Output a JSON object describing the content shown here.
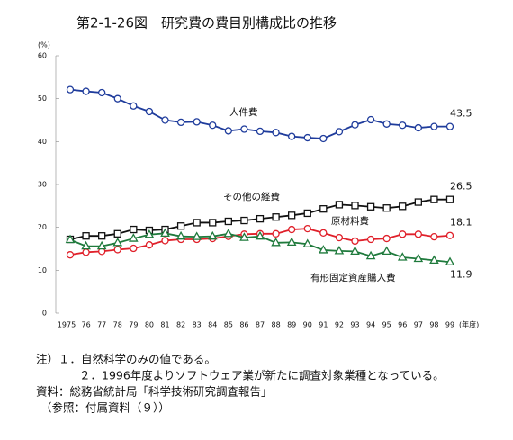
{
  "title": "第2-1-26図　研究費の費目別構成比の推移",
  "chart_data": {
    "type": "line",
    "y_label": "(%)",
    "x_label": "(年度)",
    "categories": [
      "1975",
      "76",
      "77",
      "78",
      "79",
      "80",
      "81",
      "82",
      "83",
      "84",
      "85",
      "86",
      "87",
      "88",
      "89",
      "90",
      "91",
      "92",
      "93",
      "94",
      "95",
      "96",
      "97",
      "98",
      "99"
    ],
    "ylim": [
      0,
      60
    ],
    "yticks": [
      0,
      10,
      20,
      30,
      40,
      50,
      60
    ],
    "series": [
      {
        "name": "人件費",
        "color": "#1f3c9c",
        "marker": "circle",
        "values": [
          52.1,
          51.7,
          51.4,
          50.0,
          48.3,
          47.0,
          45.0,
          44.5,
          44.6,
          43.8,
          42.5,
          42.9,
          42.4,
          42.1,
          41.2,
          40.9,
          40.7,
          42.3,
          43.9,
          45.1,
          44.1,
          43.8,
          43.2,
          43.5,
          43.5
        ]
      },
      {
        "name": "その他の経費",
        "color": "#111111",
        "marker": "square",
        "values": [
          17.2,
          18.0,
          18.0,
          18.5,
          19.5,
          19.3,
          19.5,
          20.3,
          21.1,
          21.1,
          21.4,
          21.6,
          22.0,
          22.4,
          22.8,
          23.3,
          24.3,
          25.3,
          25.1,
          24.8,
          24.5,
          24.9,
          25.9,
          26.5,
          26.5
        ]
      },
      {
        "name": "原材料費",
        "color": "#e0202a",
        "marker": "circle",
        "values": [
          13.6,
          14.2,
          14.4,
          14.8,
          15.1,
          15.9,
          16.9,
          17.2,
          17.2,
          17.4,
          17.9,
          18.4,
          18.5,
          18.5,
          19.5,
          19.7,
          18.7,
          17.6,
          16.8,
          17.2,
          17.4,
          18.4,
          18.4,
          17.8,
          18.1
        ]
      },
      {
        "name": "有形固定資産購入費",
        "color": "#1f7a3c",
        "marker": "triangle",
        "values": [
          17.1,
          15.6,
          15.6,
          16.4,
          17.4,
          18.3,
          18.6,
          17.9,
          17.8,
          17.9,
          18.5,
          17.6,
          17.9,
          16.4,
          16.5,
          16.1,
          14.7,
          14.5,
          14.4,
          13.3,
          14.4,
          13.0,
          12.7,
          12.3,
          11.9
        ]
      }
    ]
  },
  "notes": [
    "注）１．自然科学のみの値である。",
    "２．1996年度よりソフトウェア業が新たに調査対象業種となっている。",
    "資料：総務省統計局「科学技術研究調査報告」",
    "（参照：付属資料（９））"
  ]
}
